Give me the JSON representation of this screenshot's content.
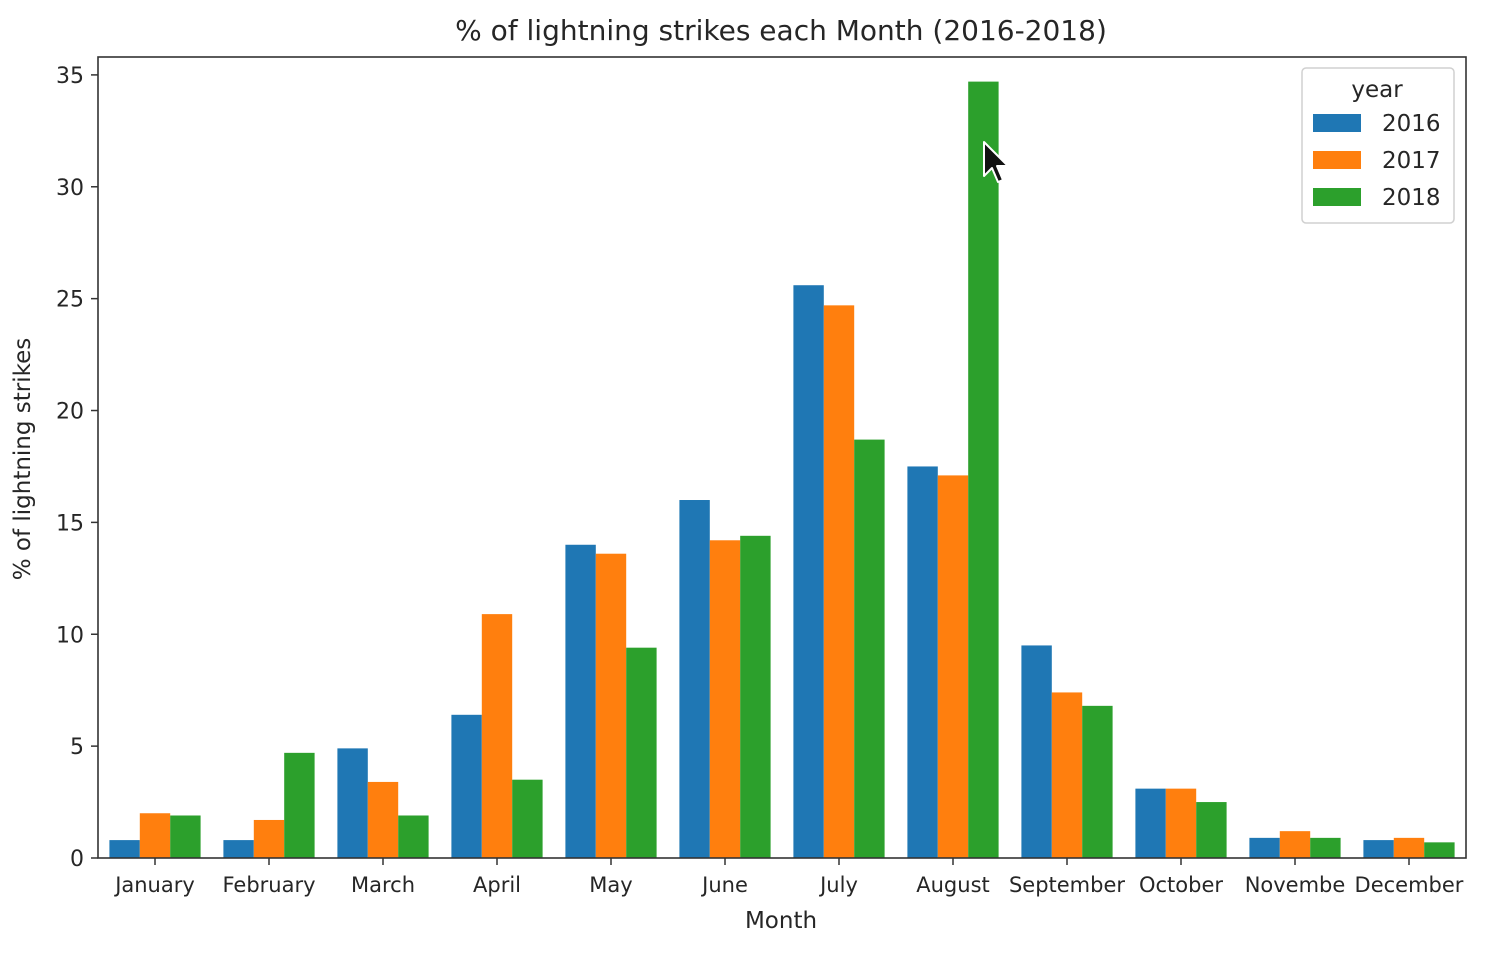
{
  "chart_data": {
    "type": "bar",
    "title": "% of lightning strikes each Month (2016-2018)",
    "xlabel": "Month",
    "ylabel": "% of lightning strikes",
    "ylim": [
      0,
      35.8
    ],
    "yticks": [
      0,
      5,
      10,
      15,
      20,
      25,
      30,
      35
    ],
    "categories": [
      "January",
      "February",
      "March",
      "April",
      "May",
      "June",
      "July",
      "August",
      "September",
      "October",
      "November",
      "December"
    ],
    "tick_labels": [
      "January",
      "February",
      "March",
      "April",
      "May",
      "June",
      "July",
      "August",
      "September",
      "October",
      "Novembe",
      "December"
    ],
    "legend": {
      "title": "year",
      "placement": "top-right"
    },
    "grid": false,
    "series": [
      {
        "name": "2016",
        "color": "#1f77b4",
        "values": [
          0.8,
          0.8,
          4.9,
          6.4,
          14.0,
          16.0,
          25.6,
          17.5,
          9.5,
          3.1,
          0.9,
          0.8
        ]
      },
      {
        "name": "2017",
        "color": "#ff7f0e",
        "values": [
          2.0,
          1.7,
          3.4,
          10.9,
          13.6,
          14.2,
          24.7,
          17.1,
          7.4,
          3.1,
          1.2,
          0.9
        ]
      },
      {
        "name": "2018",
        "color": "#2ca02c",
        "values": [
          1.9,
          4.7,
          1.9,
          3.5,
          9.4,
          14.4,
          18.7,
          34.7,
          6.8,
          2.5,
          0.9,
          0.7
        ]
      }
    ]
  }
}
